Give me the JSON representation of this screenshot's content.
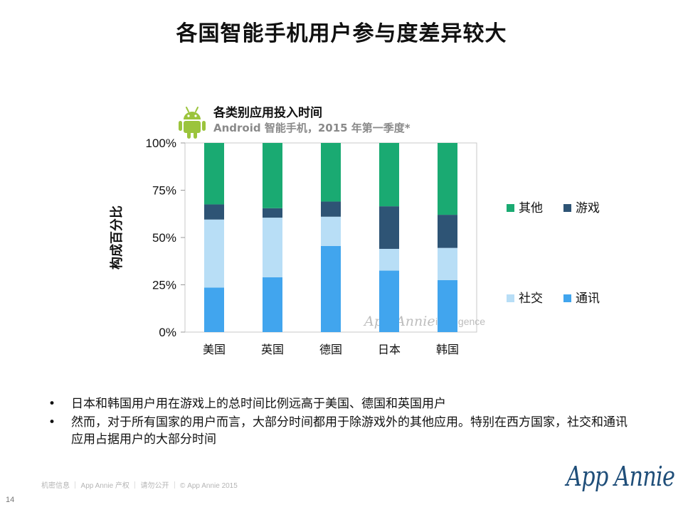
{
  "slide": {
    "title": "各国智能手机用户参与度差异较大"
  },
  "chart_data": {
    "type": "bar",
    "stacked": true,
    "title": "各类别应用投入时间",
    "subtitle": "Android 智能手机，2015 年第一季度*",
    "ylabel": "构成百分比",
    "xlabel": "",
    "ylim": [
      0,
      100
    ],
    "yticks": [
      "0%",
      "25%",
      "50%",
      "75%",
      "100%"
    ],
    "categories": [
      "美国",
      "英国",
      "德国",
      "日本",
      "韩国"
    ],
    "series": [
      {
        "name": "通讯",
        "color": "#41a5ee",
        "values": [
          23.5,
          29,
          45.5,
          32.5,
          27.5
        ]
      },
      {
        "name": "社交",
        "color": "#b8def6",
        "values": [
          36,
          31.5,
          15.5,
          11.5,
          17
        ]
      },
      {
        "name": "游戏",
        "color": "#2e5475",
        "values": [
          8,
          5,
          8,
          22.5,
          17.5
        ]
      },
      {
        "name": "其他",
        "color": "#1aaa72",
        "values": [
          32.5,
          34.5,
          31,
          33.5,
          38
        ]
      }
    ],
    "legend_placement": "right",
    "grid": false,
    "watermark": "App Annie intelligence"
  },
  "bullets": [
    "日本和韩国用户用在游戏上的总时间比例远高于美国、德国和英国用户",
    "然而，对于所有国家的用户而言，大部分时间都用于除游戏外的其他应用。特别在西方国家，社交和通讯应用占据用户的大部分时间"
  ],
  "footer": {
    "text": "机密信息 ｜ App Annie 产权 ｜ 请勿公开 ｜ © App Annie 2015",
    "page_number": "14",
    "brand": "App Annie"
  }
}
